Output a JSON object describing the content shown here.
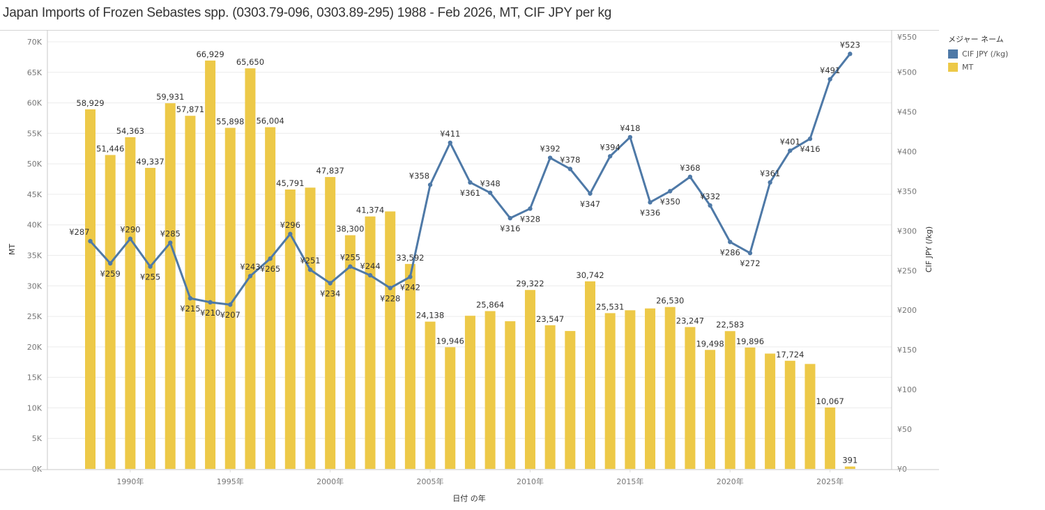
{
  "title": "Japan Imports of Frozen Sebastes spp. (0303.79-096, 0303.89-295) 1988 - Feb 2026, MT, CIF JPY per kg",
  "legend": {
    "title": "メジャー ネーム",
    "items": [
      {
        "label": "CIF JPY (/kg)",
        "color": "#4e79a7"
      },
      {
        "label": "MT",
        "color": "#edc948"
      }
    ]
  },
  "chart_data": {
    "type": "bar+line",
    "title": "Japan Imports of Frozen Sebastes spp. (0303.79-096, 0303.89-295) 1988 - Feb 2026, MT, CIF JPY per kg",
    "xlabel": "日付 の年",
    "ylabel": "MT",
    "y2label": "CIF JPY (/kg)",
    "ylim": [
      0,
      70000
    ],
    "y2lim": [
      0,
      550
    ],
    "legend_position": "top-right",
    "grid": true,
    "x": [
      1988,
      1989,
      1990,
      1991,
      1992,
      1993,
      1994,
      1995,
      1996,
      1997,
      1998,
      1999,
      2000,
      2001,
      2002,
      2003,
      2004,
      2005,
      2006,
      2007,
      2008,
      2009,
      2010,
      2011,
      2012,
      2013,
      2014,
      2015,
      2016,
      2017,
      2018,
      2019,
      2020,
      2021,
      2022,
      2023,
      2024,
      2025,
      2026
    ],
    "x_ticks": [
      {
        "value": 1990,
        "label": "1990年"
      },
      {
        "value": 1995,
        "label": "1995年"
      },
      {
        "value": 2000,
        "label": "2000年"
      },
      {
        "value": 2005,
        "label": "2005年"
      },
      {
        "value": 2010,
        "label": "2010年"
      },
      {
        "value": 2015,
        "label": "2015年"
      },
      {
        "value": 2020,
        "label": "2020年"
      },
      {
        "value": 2025,
        "label": "2025年"
      }
    ],
    "y_ticks": [
      {
        "value": 0,
        "label": "0K"
      },
      {
        "value": 5000,
        "label": "5K"
      },
      {
        "value": 10000,
        "label": "10K"
      },
      {
        "value": 15000,
        "label": "15K"
      },
      {
        "value": 20000,
        "label": "20K"
      },
      {
        "value": 25000,
        "label": "25K"
      },
      {
        "value": 30000,
        "label": "30K"
      },
      {
        "value": 35000,
        "label": "35K"
      },
      {
        "value": 40000,
        "label": "40K"
      },
      {
        "value": 45000,
        "label": "45K"
      },
      {
        "value": 50000,
        "label": "50K"
      },
      {
        "value": 55000,
        "label": "55K"
      },
      {
        "value": 60000,
        "label": "60K"
      },
      {
        "value": 65000,
        "label": "65K"
      },
      {
        "value": 70000,
        "label": "70K"
      }
    ],
    "y2_ticks": [
      {
        "value": 0,
        "label": "¥0"
      },
      {
        "value": 50,
        "label": "¥50"
      },
      {
        "value": 100,
        "label": "¥100"
      },
      {
        "value": 150,
        "label": "¥150"
      },
      {
        "value": 200,
        "label": "¥200"
      },
      {
        "value": 250,
        "label": "¥250"
      },
      {
        "value": 300,
        "label": "¥300"
      },
      {
        "value": 350,
        "label": "¥350"
      },
      {
        "value": 400,
        "label": "¥400"
      },
      {
        "value": 450,
        "label": "¥450"
      },
      {
        "value": 500,
        "label": "¥500"
      },
      {
        "value": 550,
        "label": "¥550"
      }
    ],
    "series": [
      {
        "name": "MT",
        "type": "bar",
        "color": "#edc948",
        "values": [
          58929,
          51446,
          54363,
          49337,
          59931,
          57871,
          66929,
          55898,
          65650,
          56004,
          45791,
          46100,
          47837,
          38300,
          41374,
          42200,
          33592,
          24138,
          19946,
          25100,
          25864,
          24200,
          29322,
          23547,
          22600,
          30742,
          25531,
          26000,
          26300,
          26530,
          23247,
          19498,
          22583,
          19896,
          18900,
          17724,
          17200,
          10067,
          391
        ],
        "labels": [
          "58,929",
          "51,446",
          "54,363",
          "49,337",
          "59,931",
          "57,871",
          "66,929",
          "55,898",
          "65,650",
          "56,004",
          "45,791",
          "",
          "47,837",
          "38,300",
          "41,374",
          "",
          "33,592",
          "24,138",
          "19,946",
          "",
          "25,864",
          "",
          "29,322",
          "23,547",
          "",
          "30,742",
          "25,531",
          "",
          "",
          "26,530",
          "23,247",
          "19,498",
          "22,583",
          "19,896",
          "",
          "17,724",
          "",
          "10,067",
          "391"
        ]
      },
      {
        "name": "CIF JPY (/kg)",
        "type": "line",
        "color": "#4e79a7",
        "axis": "right",
        "values": [
          287,
          259,
          290,
          255,
          285,
          215,
          210,
          207,
          243,
          265,
          296,
          251,
          234,
          255,
          244,
          228,
          242,
          358,
          411,
          361,
          348,
          316,
          328,
          392,
          378,
          347,
          394,
          418,
          336,
          350,
          368,
          332,
          286,
          272,
          361,
          401,
          416,
          491,
          523
        ],
        "labels": [
          "¥287",
          "¥259",
          "¥290",
          "¥255",
          "¥285",
          "¥215",
          "¥210",
          "¥207",
          "¥243",
          "¥265",
          "¥296",
          "¥251",
          "¥234",
          "¥255",
          "¥244",
          "¥228",
          "¥242",
          "¥358",
          "¥411",
          "¥361",
          "¥348",
          "¥316",
          "¥328",
          "¥392",
          "¥378",
          "¥347",
          "¥394",
          "¥418",
          "¥336",
          "¥350",
          "¥368",
          "¥332",
          "¥286",
          "¥272",
          "¥361",
          "¥401",
          "¥416",
          "¥491",
          "¥523"
        ],
        "label_positions": [
          "left",
          "below",
          "above",
          "below",
          "above",
          "below",
          "below",
          "below",
          "above",
          "below",
          "above",
          "above",
          "below",
          "above",
          "above",
          "below",
          "below",
          "left",
          "above",
          "below",
          "above",
          "below",
          "below",
          "above",
          "above",
          "below",
          "above",
          "above",
          "below",
          "below",
          "above",
          "above",
          "below",
          "below",
          "above",
          "above",
          "below",
          "above",
          "above"
        ]
      }
    ]
  }
}
